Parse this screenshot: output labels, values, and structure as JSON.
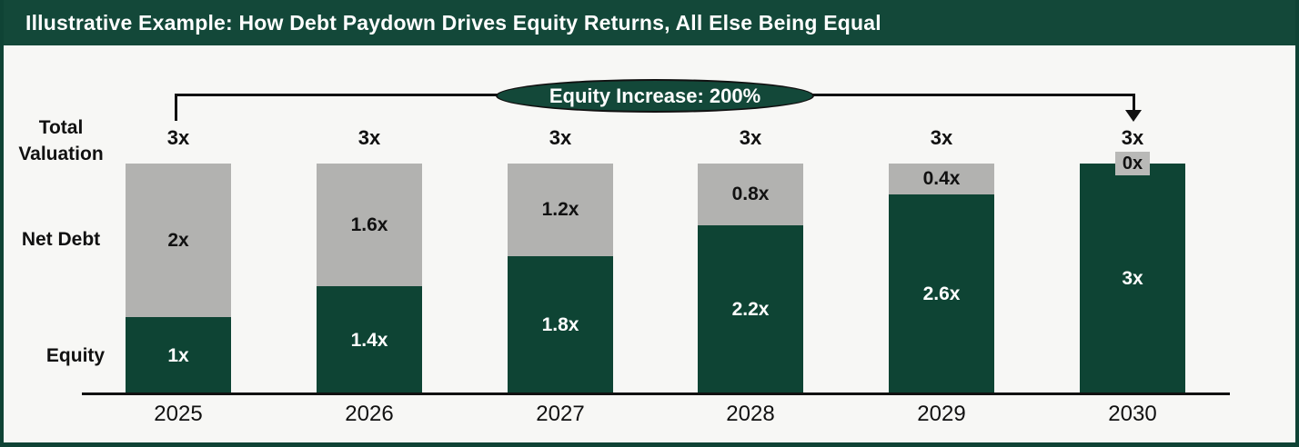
{
  "header": {
    "title": "Illustrative Example: How Debt Paydown Drives Equity Returns, All Else Being Equal"
  },
  "annotation": {
    "label": "Equity Increase: 200%"
  },
  "row_labels": {
    "total_valuation": "Total Valuation",
    "net_debt": "Net Debt",
    "equity": "Equity"
  },
  "colors": {
    "frame_green": "#0F4335",
    "header_green": "#134839",
    "equity_green": "#0E4434",
    "debt_gray": "#B2B2B0",
    "background": "#F7F7F5",
    "line_black": "#111111"
  },
  "chart_data": {
    "type": "bar",
    "stacked": true,
    "title": "Illustrative Example: How Debt Paydown Drives Equity Returns, All Else Being Equal",
    "annotation": "Equity Increase: 200%",
    "categories": [
      "2025",
      "2026",
      "2027",
      "2028",
      "2029",
      "2030"
    ],
    "series": [
      {
        "name": "Equity",
        "color": "#0E4434",
        "values": [
          1.0,
          1.4,
          1.8,
          2.2,
          2.6,
          3.0
        ],
        "labels": [
          "1x",
          "1.4x",
          "1.8x",
          "2.2x",
          "2.6x",
          "3x"
        ]
      },
      {
        "name": "Net Debt",
        "color": "#B2B2B0",
        "values": [
          2.0,
          1.6,
          1.2,
          0.8,
          0.4,
          0.0
        ],
        "labels": [
          "2x",
          "1.6x",
          "1.2x",
          "0.8x",
          "0.4x",
          "0x"
        ]
      }
    ],
    "totals": [
      "3x",
      "3x",
      "3x",
      "3x",
      "3x",
      "3x"
    ],
    "ylim": [
      0,
      3
    ],
    "grid": false,
    "legend": "none (row labels on left: Total Valuation, Net Debt, Equity)"
  }
}
